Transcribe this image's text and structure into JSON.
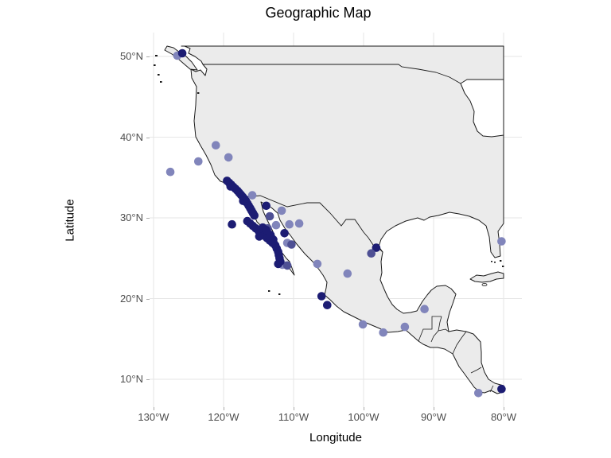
{
  "title": "Geographic Map",
  "axes": {
    "x_label": "Longitude",
    "y_label": "Latitude",
    "x_tick_labels": [
      "130°W",
      "120°W",
      "110°W",
      "100°W",
      "90°W",
      "80°W"
    ],
    "y_tick_labels": [
      "50°N",
      "40°N",
      "30°N",
      "20°N",
      "10°N"
    ]
  },
  "chart_data": {
    "type": "scatter",
    "title": "Geographic Map",
    "xlabel": "Longitude",
    "ylabel": "Latitude",
    "xlim": [
      -130.6,
      -77.5
    ],
    "ylim": [
      6.5,
      53.0
    ],
    "x_tick_values": [
      -130,
      -120,
      -110,
      -100,
      -90,
      -80
    ],
    "y_tick_values": [
      50,
      40,
      30,
      20,
      10
    ],
    "grid": "major-only",
    "legend": "none",
    "point_radius_px": 5.3,
    "shade_colors": {
      "d": "#1c1c73",
      "m": "#4e5094",
      "l": "#8185bb"
    },
    "points": [
      [
        -126.6,
        50.1,
        "l"
      ],
      [
        -125.9,
        50.4,
        "d"
      ],
      [
        -127.6,
        35.7,
        "l"
      ],
      [
        -123.6,
        37.0,
        "l"
      ],
      [
        -121.1,
        39.0,
        "l"
      ],
      [
        -119.3,
        37.5,
        "l"
      ],
      [
        -118.8,
        29.2,
        "d"
      ],
      [
        -115.9,
        32.8,
        "l"
      ],
      [
        -113.9,
        31.5,
        "d"
      ],
      [
        -111.7,
        30.9,
        "l"
      ],
      [
        -113.4,
        30.2,
        "m"
      ],
      [
        -112.5,
        29.1,
        "l"
      ],
      [
        -110.6,
        29.2,
        "l"
      ],
      [
        -109.2,
        29.3,
        "l"
      ],
      [
        -113.7,
        28.7,
        "m"
      ],
      [
        -111.3,
        28.1,
        "d"
      ],
      [
        -110.9,
        26.9,
        "l"
      ],
      [
        -110.3,
        26.7,
        "m"
      ],
      [
        -111.6,
        24.2,
        "l"
      ],
      [
        -110.9,
        24.1,
        "m"
      ],
      [
        -106.6,
        24.3,
        "l"
      ],
      [
        -102.3,
        23.1,
        "l"
      ],
      [
        -106.0,
        20.3,
        "d"
      ],
      [
        -105.2,
        19.2,
        "d"
      ],
      [
        -100.1,
        16.8,
        "l"
      ],
      [
        -97.2,
        15.8,
        "l"
      ],
      [
        -94.1,
        16.5,
        "l"
      ],
      [
        -91.3,
        18.7,
        "l"
      ],
      [
        -98.2,
        26.3,
        "d"
      ],
      [
        -98.9,
        25.6,
        "m"
      ],
      [
        -80.3,
        27.1,
        "l"
      ],
      [
        -83.6,
        8.3,
        "l"
      ],
      [
        -80.3,
        8.8,
        "d"
      ],
      [
        -119.5,
        34.6,
        "d"
      ],
      [
        -119.2,
        34.35,
        "d"
      ],
      [
        -118.9,
        34.1,
        "d"
      ],
      [
        -119.0,
        33.9,
        "d"
      ],
      [
        -118.6,
        33.85,
        "d"
      ],
      [
        -118.3,
        33.6,
        "d"
      ],
      [
        -118.0,
        33.35,
        "d"
      ],
      [
        -117.75,
        33.1,
        "d"
      ],
      [
        -117.5,
        32.85,
        "d"
      ],
      [
        -117.25,
        32.6,
        "d"
      ],
      [
        -117.0,
        32.35,
        "d"
      ],
      [
        -117.2,
        32.1,
        "d"
      ],
      [
        -116.8,
        32.1,
        "d"
      ],
      [
        -116.6,
        31.8,
        "d"
      ],
      [
        -116.4,
        31.5,
        "d"
      ],
      [
        -116.2,
        31.2,
        "d"
      ],
      [
        -116.0,
        30.9,
        "d"
      ],
      [
        -115.8,
        30.6,
        "d"
      ],
      [
        -115.6,
        30.3,
        "d"
      ],
      [
        -116.6,
        29.6,
        "d"
      ],
      [
        -116.2,
        29.3,
        "d"
      ],
      [
        -115.8,
        29.0,
        "d"
      ],
      [
        -115.4,
        28.7,
        "d"
      ],
      [
        -115.0,
        28.4,
        "d"
      ],
      [
        -114.6,
        28.1,
        "d"
      ],
      [
        -114.2,
        27.8,
        "d"
      ],
      [
        -113.8,
        27.5,
        "d"
      ],
      [
        -113.4,
        27.2,
        "d"
      ],
      [
        -113.0,
        26.9,
        "d"
      ],
      [
        -112.6,
        26.6,
        "d"
      ],
      [
        -114.9,
        27.7,
        "d"
      ],
      [
        -114.4,
        28.8,
        "d"
      ],
      [
        -113.9,
        28.5,
        "d"
      ],
      [
        -113.3,
        27.9,
        "d"
      ],
      [
        -112.9,
        27.3,
        "d"
      ],
      [
        -112.4,
        26.2,
        "d"
      ],
      [
        -112.2,
        25.8,
        "d"
      ],
      [
        -112.1,
        25.4,
        "d"
      ],
      [
        -112.0,
        25.0,
        "d"
      ],
      [
        -111.9,
        24.6,
        "d"
      ],
      [
        -112.2,
        24.3,
        "d"
      ]
    ]
  },
  "style": {
    "land_fill": "#ebebeb",
    "water_fill": "#ffffff",
    "coast_color": "#1a1a1a",
    "gridline_color": "#e6e6e6",
    "tick_color": "#aaaaaa",
    "tick_label_color": "#4d4d4d",
    "title_color": "#000000"
  }
}
